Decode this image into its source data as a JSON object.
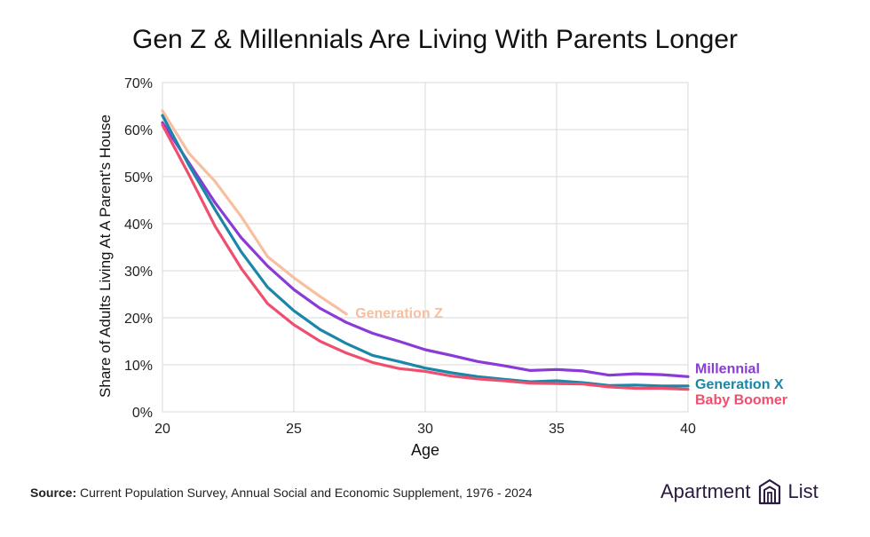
{
  "chart_data": {
    "type": "line",
    "title": "Gen Z & Millennials Are Living With Parents Longer",
    "xlabel": "Age",
    "ylabel": "Share of Adults Living At A Parent's House",
    "xlim": [
      20,
      40
    ],
    "ylim": [
      0,
      70
    ],
    "x_ticks": [
      20,
      25,
      30,
      35,
      40
    ],
    "y_ticks": [
      "0%",
      "10%",
      "20%",
      "30%",
      "40%",
      "50%",
      "60%",
      "70%"
    ],
    "y_tick_values": [
      0,
      10,
      20,
      30,
      40,
      50,
      60,
      70
    ],
    "grid": true,
    "series": [
      {
        "name": "Generation Z",
        "color": "#f7bf9f",
        "x": [
          20,
          21,
          22,
          23,
          24,
          25,
          26,
          27
        ],
        "values": [
          64.0,
          55.0,
          49.0,
          41.5,
          33.0,
          28.5,
          24.5,
          20.8
        ]
      },
      {
        "name": "Millennial",
        "color": "#8a3ad6",
        "x": [
          20,
          21,
          22,
          23,
          24,
          25,
          26,
          27,
          28,
          29,
          30,
          31,
          32,
          33,
          34,
          35,
          36,
          37,
          38,
          39,
          40
        ],
        "values": [
          61.5,
          53.0,
          44.5,
          37.0,
          31.0,
          26.0,
          22.0,
          19.0,
          16.7,
          15.0,
          13.2,
          12.0,
          10.7,
          9.8,
          8.8,
          9.0,
          8.7,
          7.8,
          8.1,
          7.9,
          7.5
        ]
      },
      {
        "name": "Generation X",
        "color": "#1a86a8",
        "x": [
          20,
          21,
          22,
          23,
          24,
          25,
          26,
          27,
          28,
          29,
          30,
          31,
          32,
          33,
          34,
          35,
          36,
          37,
          38,
          39,
          40
        ],
        "values": [
          63.0,
          52.5,
          43.0,
          34.0,
          26.5,
          21.5,
          17.5,
          14.5,
          12.0,
          10.7,
          9.3,
          8.3,
          7.5,
          6.9,
          6.4,
          6.6,
          6.2,
          5.6,
          5.7,
          5.5,
          5.5
        ]
      },
      {
        "name": "Baby Boomer",
        "color": "#ef4f6e",
        "x": [
          20,
          21,
          22,
          23,
          24,
          25,
          26,
          27,
          28,
          29,
          30,
          31,
          32,
          33,
          34,
          35,
          36,
          37,
          38,
          39,
          40
        ],
        "values": [
          61.0,
          50.5,
          39.5,
          30.5,
          23.0,
          18.5,
          15.0,
          12.5,
          10.5,
          9.2,
          8.6,
          7.6,
          7.0,
          6.6,
          6.1,
          6.0,
          5.9,
          5.3,
          5.0,
          5.0,
          4.8
        ]
      }
    ]
  },
  "footer": {
    "source_label": "Source:",
    "source_text": " Current Population Survey, Annual Social and Economic Supplement, 1976 - 2024"
  },
  "logo": {
    "word1": "Apartment",
    "word2": "List",
    "color": "#2b1a3f",
    "icon": "apartment-list-logo-icon"
  }
}
